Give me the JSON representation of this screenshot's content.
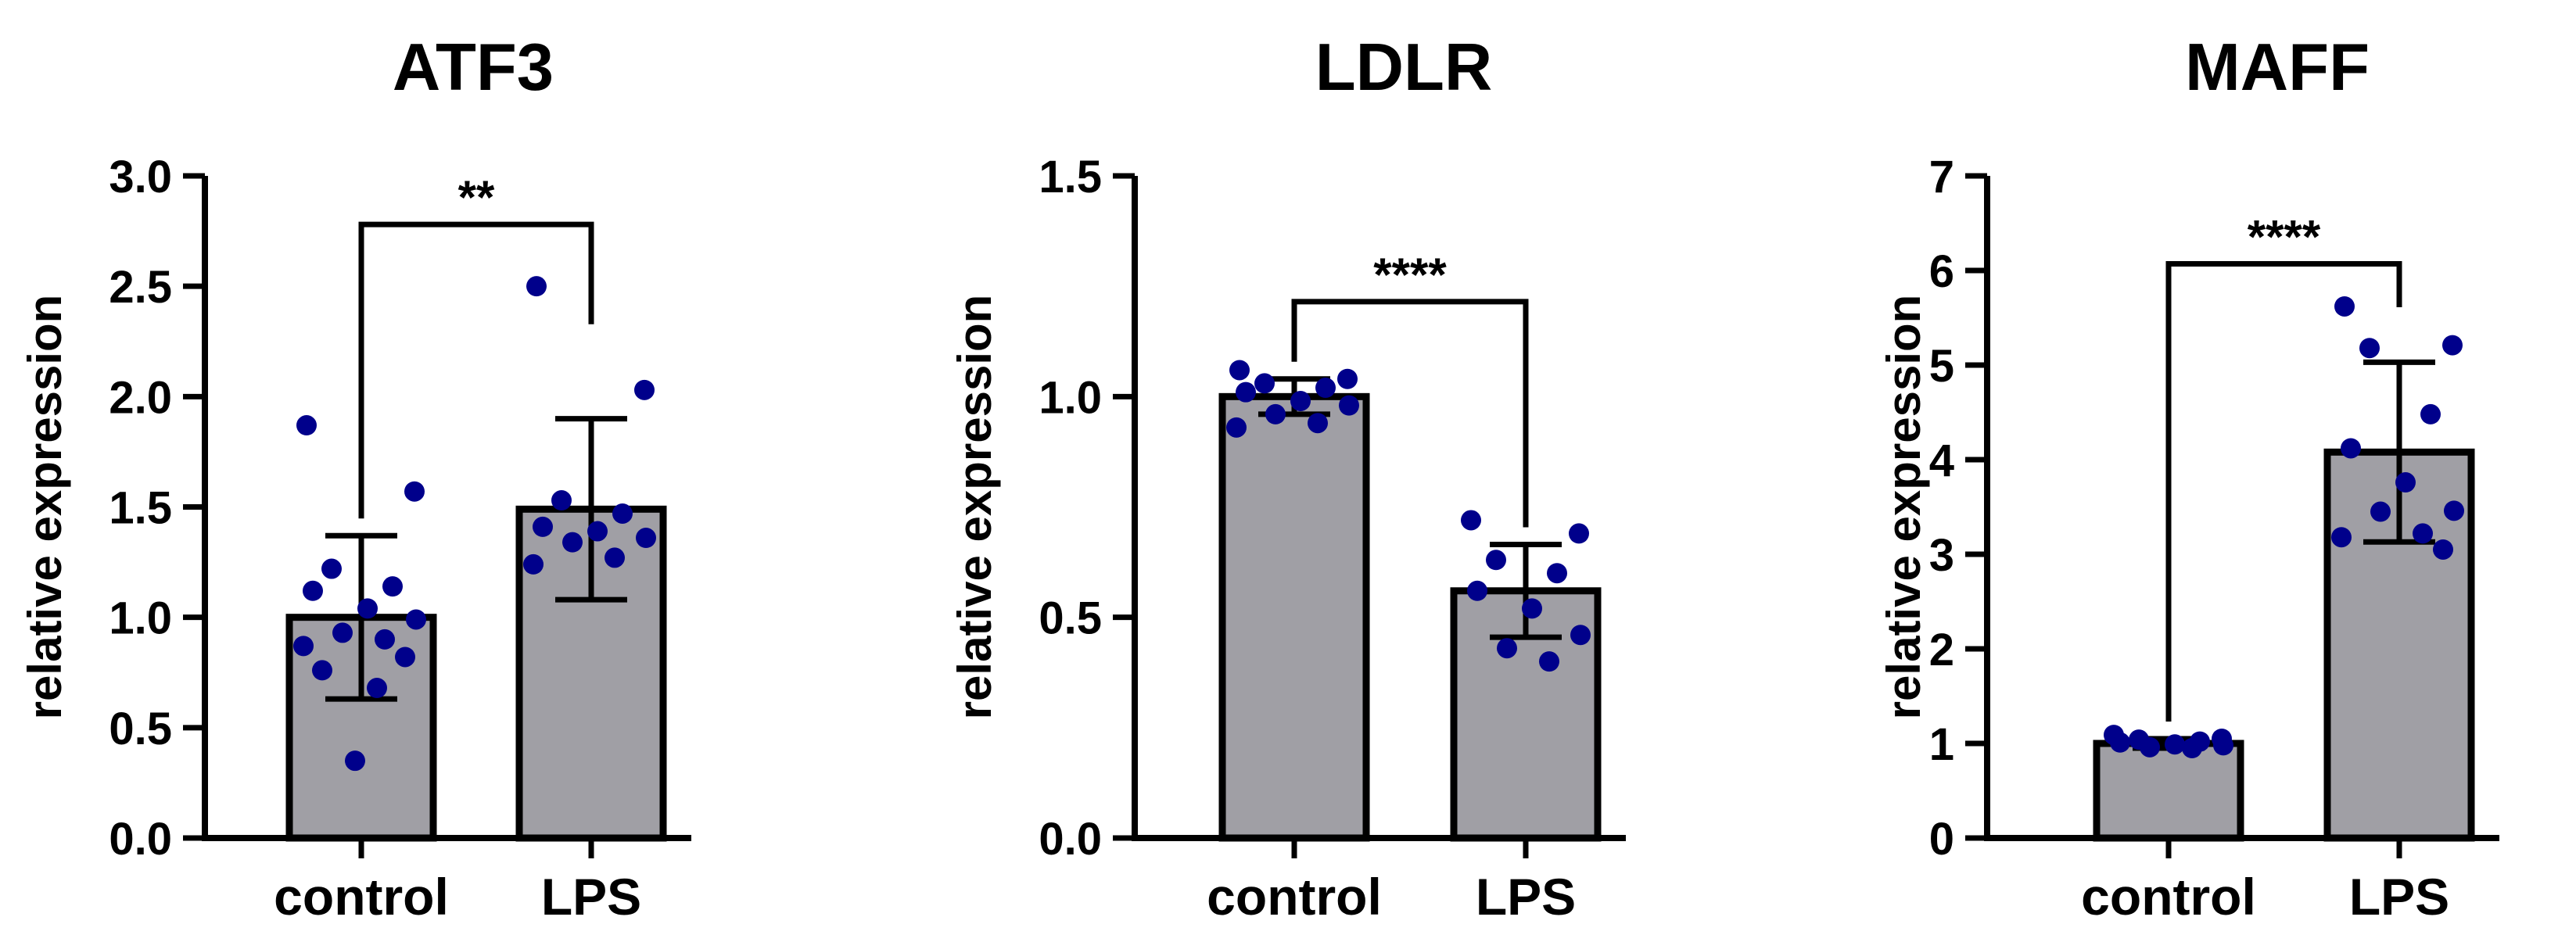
{
  "colors": {
    "bar_fill": "#a09fa5",
    "bar_stroke": "#000000",
    "point_color": "#00008b",
    "axis_color": "#000000"
  },
  "chart_data": [
    {
      "type": "bar",
      "title": "ATF3",
      "ylabel": "relative expression",
      "xlabel": "",
      "categories": [
        "control",
        "LPS"
      ],
      "values": [
        1.0,
        1.49
      ],
      "error_sd": [
        0.37,
        0.41
      ],
      "ylim": [
        0,
        3.0
      ],
      "yticks": [
        0,
        0.5,
        1.0,
        1.5,
        2.0,
        2.5,
        3.0
      ],
      "ytick_labels": [
        "0.0",
        "0.5",
        "1.0",
        "1.5",
        "2.0",
        "2.5",
        "3.0"
      ],
      "points": [
        [
          1.87,
          1.57,
          1.22,
          1.14,
          1.12,
          1.04,
          0.99,
          0.93,
          0.9,
          0.87,
          0.82,
          0.76,
          0.68,
          0.35
        ],
        [
          2.5,
          2.03,
          1.53,
          1.47,
          1.41,
          1.39,
          1.36,
          1.34,
          1.27,
          1.24
        ]
      ],
      "significance": "**",
      "grid": false,
      "legend": "none"
    },
    {
      "type": "bar",
      "title": "LDLR",
      "ylabel": "relative expression",
      "xlabel": "",
      "categories": [
        "control",
        "LPS"
      ],
      "values": [
        1.0,
        0.56
      ],
      "error_sd": [
        0.04,
        0.105
      ],
      "ylim": [
        0,
        1.5
      ],
      "yticks": [
        0,
        0.5,
        1.0,
        1.5
      ],
      "ytick_labels": [
        "0.0",
        "0.5",
        "1.0",
        "1.5"
      ],
      "points": [
        [
          1.06,
          1.04,
          1.03,
          1.02,
          1.01,
          0.99,
          0.98,
          0.96,
          0.94,
          0.93
        ],
        [
          0.72,
          0.69,
          0.63,
          0.6,
          0.56,
          0.52,
          0.46,
          0.43,
          0.4
        ]
      ],
      "significance": "****",
      "grid": false,
      "legend": "none"
    },
    {
      "type": "bar",
      "title": "MAFF",
      "ylabel": "relative expression",
      "xlabel": "",
      "categories": [
        "control",
        "LPS"
      ],
      "values": [
        1.0,
        4.08
      ],
      "error_sd": [
        0.05,
        0.95
      ],
      "ylim": [
        0,
        7
      ],
      "yticks": [
        0,
        1,
        2,
        3,
        4,
        5,
        6,
        7
      ],
      "ytick_labels": [
        "0",
        "1",
        "2",
        "3",
        "4",
        "5",
        "6",
        "7"
      ],
      "points": [
        [
          1.09,
          1.05,
          1.04,
          1.02,
          1.01,
          0.99,
          0.98,
          0.96,
          0.95
        ],
        [
          5.62,
          5.21,
          5.18,
          4.48,
          4.12,
          3.76,
          3.46,
          3.45,
          3.22,
          3.18,
          3.05
        ]
      ],
      "significance": "****",
      "grid": false,
      "legend": "none"
    }
  ]
}
